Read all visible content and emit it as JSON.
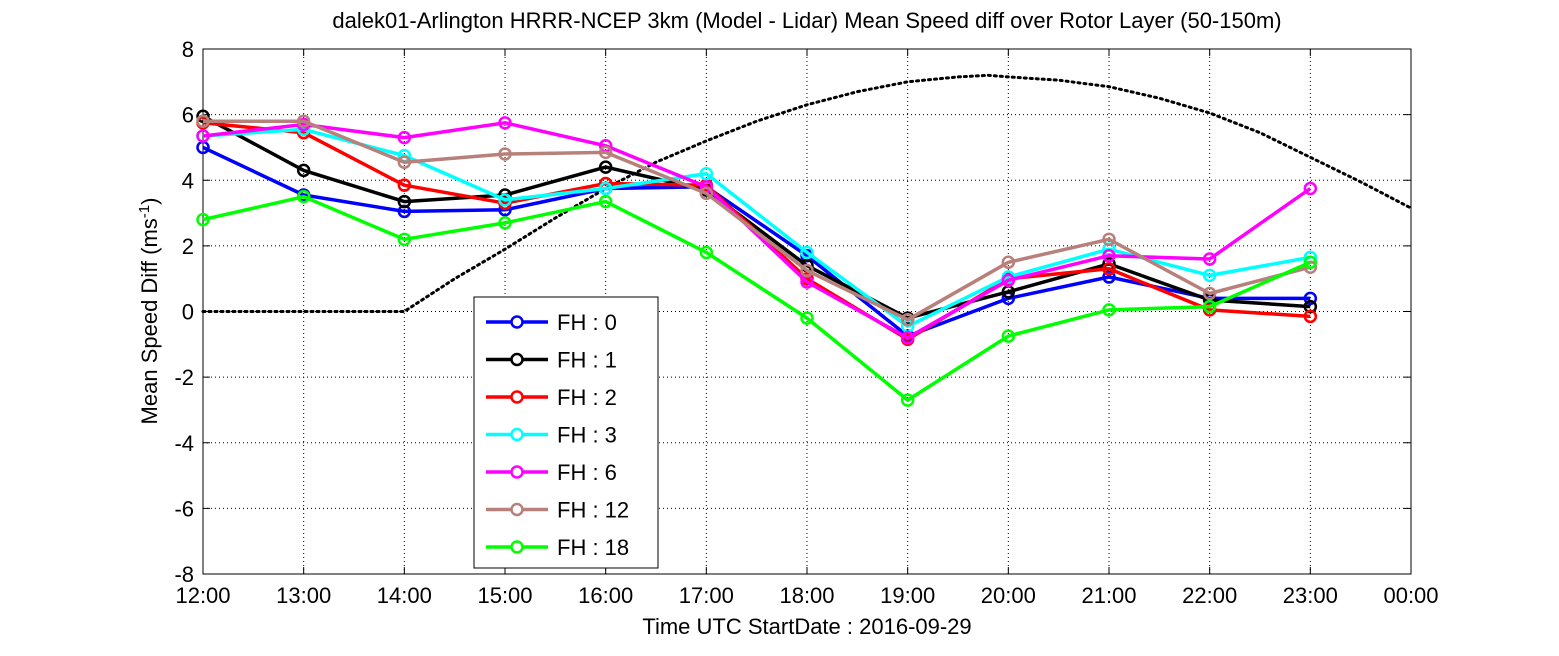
{
  "chart_data": {
    "type": "line",
    "title": "dalek01-Arlington HRRR-NCEP 3km (Model - Lidar) Mean Speed diff over Rotor Layer (50-150m)",
    "xlabel": "Time UTC    StartDate : 2016-09-29",
    "ylabel_main": "Mean Speed Diff (ms",
    "ylabel_sup": "-1",
    "ylabel_close": ")",
    "x_ticks": [
      "12:00",
      "13:00",
      "14:00",
      "15:00",
      "16:00",
      "17:00",
      "18:00",
      "19:00",
      "20:00",
      "21:00",
      "22:00",
      "23:00",
      "00:00"
    ],
    "y_ticks": [
      "8",
      "6",
      "4",
      "2",
      "0",
      "-2",
      "-4",
      "-6",
      "-8"
    ],
    "ylim": [
      -8,
      8
    ],
    "grid": true,
    "legend_position": "lower-left",
    "series": [
      {
        "name": "FH : 0",
        "color": "#0000ff",
        "values": [
          5.0,
          3.55,
          3.05,
          3.1,
          3.75,
          3.8,
          1.7,
          -0.75,
          0.4,
          1.05,
          0.4,
          0.4
        ]
      },
      {
        "name": "FH : 1",
        "color": "#000000",
        "values": [
          5.95,
          4.3,
          3.35,
          3.55,
          4.4,
          3.7,
          1.4,
          -0.2,
          0.6,
          1.45,
          0.35,
          0.15
        ]
      },
      {
        "name": "FH : 2",
        "color": "#ff0000",
        "values": [
          5.75,
          5.45,
          3.85,
          3.3,
          3.9,
          3.85,
          1.0,
          -0.85,
          1.0,
          1.3,
          0.05,
          -0.15
        ]
      },
      {
        "name": "FH : 3",
        "color": "#00ffff",
        "values": [
          5.35,
          5.55,
          4.75,
          3.4,
          3.75,
          4.2,
          1.8,
          -0.45,
          1.05,
          1.9,
          1.1,
          1.65
        ]
      },
      {
        "name": "FH : 6",
        "color": "#ff00ff",
        "values": [
          5.35,
          5.7,
          5.3,
          5.75,
          5.05,
          3.8,
          0.9,
          -0.8,
          0.95,
          1.7,
          1.6,
          3.75
        ]
      },
      {
        "name": "FH : 12",
        "color": "#b8807a",
        "values": [
          5.8,
          5.8,
          4.55,
          4.8,
          4.85,
          3.6,
          1.25,
          -0.25,
          1.5,
          2.2,
          0.55,
          1.35
        ]
      },
      {
        "name": "FH : 18",
        "color": "#00ff00",
        "values": [
          2.8,
          3.5,
          2.2,
          2.7,
          3.35,
          1.8,
          -0.2,
          -2.7,
          -0.75,
          0.05,
          0.15,
          1.5
        ]
      }
    ],
    "reference_curve": {
      "style": "dotted",
      "color": "#000000",
      "x_hours": [
        0,
        1,
        2,
        2.5,
        3,
        3.5,
        4,
        4.5,
        5,
        5.5,
        6,
        6.5,
        7,
        7.5,
        7.8,
        8,
        8.5,
        9,
        9.5,
        10,
        10.5,
        11,
        11.5,
        12
      ],
      "values": [
        0,
        0,
        0,
        1.0,
        1.9,
        2.85,
        3.75,
        4.55,
        5.2,
        5.8,
        6.3,
        6.7,
        7.0,
        7.15,
        7.2,
        7.15,
        7.05,
        6.85,
        6.5,
        6.05,
        5.45,
        4.7,
        3.95,
        3.15
      ]
    }
  }
}
